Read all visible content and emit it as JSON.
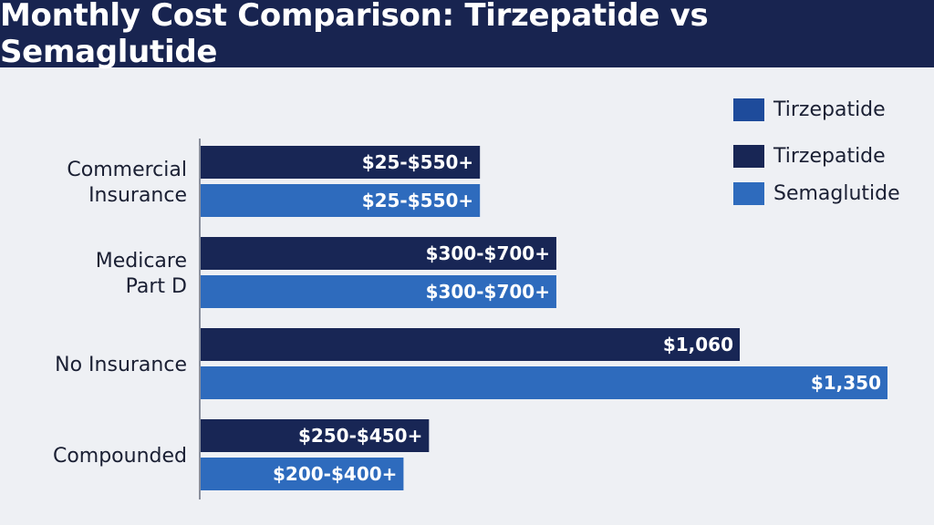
{
  "chart_data": {
    "type": "bar",
    "orientation": "horizontal",
    "title": "Monthly Cost Comparison: Tirzepatide vs Semaglutide",
    "xlabel": "",
    "ylabel": "",
    "xlim": [
      0,
      1400
    ],
    "grid": false,
    "legend_position": "top-right",
    "categories": [
      "Commercial\nInsurance",
      "Medicare\nPart D",
      "No Insurance",
      "Compounded"
    ],
    "series": [
      {
        "name": "Tirzepatide",
        "color": "#182655",
        "values": [
          550,
          700,
          1060,
          450
        ],
        "labels": [
          "$25-$550+",
          "$300-$700+",
          "$1,060",
          "$250-$450+"
        ]
      },
      {
        "name": "Semaglutide",
        "color": "#2e6bbd",
        "values": [
          550,
          700,
          1350,
          400
        ],
        "labels": [
          "$25-$550+",
          "$300-$700+",
          "$1,350",
          "$200-$400+"
        ]
      }
    ],
    "legend": [
      {
        "label": "Tirzepatide",
        "color": "#1e4b9b"
      },
      {
        "label": "Tirzepatide",
        "color": "#182655"
      },
      {
        "label": "Semaglutide",
        "color": "#2e6bbd"
      }
    ]
  }
}
